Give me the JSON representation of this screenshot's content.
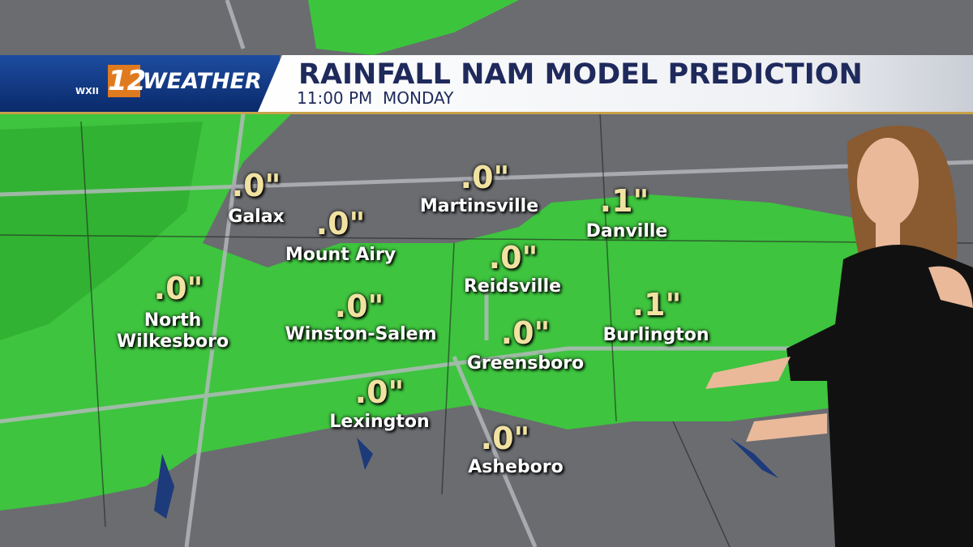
{
  "header": {
    "logo_small": "WXII",
    "logo_number": "12",
    "logo_word": "WEATHER",
    "title": "RAINFALL NAM MODEL PREDICTION",
    "subtitle": "11:00 PM  MONDAY"
  },
  "cities": [
    {
      "name": "Galax",
      "amount": ".0\""
    },
    {
      "name": "Mount Airy",
      "amount": ".0\""
    },
    {
      "name": "Martinsville",
      "amount": ".0\""
    },
    {
      "name": "Danville",
      "amount": ".1\""
    },
    {
      "name": "North Wilkesboro",
      "amount": ".0\""
    },
    {
      "name": "Reidsville",
      "amount": ".0\""
    },
    {
      "name": "Winston-Salem",
      "amount": ".0\""
    },
    {
      "name": "Burlington",
      "amount": ".1\""
    },
    {
      "name": "Greensboro",
      "amount": ".0\""
    },
    {
      "name": "Lexington",
      "amount": ".0\""
    },
    {
      "name": "Asheboro",
      "amount": ".0\""
    }
  ]
}
